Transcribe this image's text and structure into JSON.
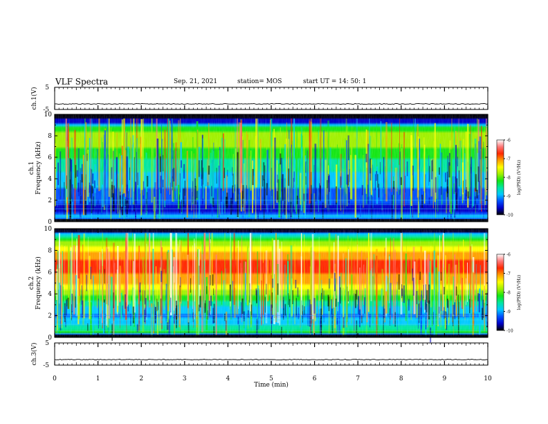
{
  "header": {
    "title": "VLF Spectra",
    "date": "Sep. 21, 2021",
    "station": "station= MOS",
    "start": "start  UT =   14: 50: 1"
  },
  "chart_data": [
    {
      "type": "line",
      "name": "ch.1(V)",
      "ylabel": "ch.1(V)",
      "ylim": [
        -5,
        5
      ],
      "yticks": [
        "5",
        "-5"
      ],
      "xlim": [
        0,
        10
      ],
      "value_approx": -2.5
    },
    {
      "type": "heatmap",
      "ylabel": "ch.1\nFrequency (kHz)",
      "ylabel_lines": [
        "ch.1",
        "Frequency (kHz)"
      ],
      "ylim": [
        0,
        10
      ],
      "yticks": [
        "0",
        "2",
        "4",
        "6",
        "8",
        "10"
      ],
      "xlim": [
        0,
        10
      ],
      "colorbar": {
        "label": "log(PSD) (V²/Hz)",
        "range": [
          -10,
          -6
        ],
        "ticks": [
          "-10",
          "-9",
          "-8",
          "-7",
          "-6"
        ]
      },
      "profile_freq_khz": [
        0,
        0.5,
        1,
        2,
        3,
        4,
        5,
        6,
        7,
        8,
        8.8,
        9.3,
        10
      ],
      "profile_log_psd": [
        -10,
        -8.8,
        -9.6,
        -9.4,
        -9.1,
        -8.9,
        -8.6,
        -8.3,
        -8.0,
        -7.8,
        -8.3,
        -9.6,
        -10
      ]
    },
    {
      "type": "heatmap",
      "ylabel": "ch.2\nFrequency (kHz)",
      "ylabel_lines": [
        "ch.2",
        "Frequency (kHz)"
      ],
      "ylim": [
        0,
        10
      ],
      "yticks": [
        "0",
        "2",
        "4",
        "6",
        "8",
        "10"
      ],
      "xlim": [
        0,
        10
      ],
      "colorbar": {
        "label": "log(PSD) (V²/Hz)",
        "range": [
          -10,
          -6
        ],
        "ticks": [
          "-10",
          "-9",
          "-8",
          "-7",
          "-6"
        ]
      },
      "profile_freq_khz": [
        0,
        0.5,
        1,
        2,
        3,
        4,
        5,
        6,
        7,
        8,
        9,
        9.6,
        10
      ],
      "profile_log_psd": [
        -10,
        -8.2,
        -8.6,
        -9.2,
        -8.6,
        -8.0,
        -7.2,
        -6.9,
        -6.9,
        -7.3,
        -8.2,
        -9.2,
        -10
      ]
    },
    {
      "type": "line",
      "name": "ch.3(V)",
      "ylabel": "ch.3(V)",
      "ylim": [
        -5,
        5
      ],
      "yticks": [
        "5",
        "-5"
      ],
      "xlim": [
        0,
        10
      ],
      "value_approx": -2.5
    }
  ],
  "xaxis": {
    "label": "Time  (min)",
    "range": [
      0,
      10
    ],
    "ticks": [
      "0",
      "1",
      "2",
      "3",
      "4",
      "5",
      "6",
      "7",
      "8",
      "9",
      "10"
    ]
  },
  "colors": {
    "scale": [
      "#000000",
      "#0000c8",
      "#0050ff",
      "#00c8ff",
      "#00e6a0",
      "#14e614",
      "#a0f000",
      "#ffff00",
      "#ffa000",
      "#ff2800",
      "#ff7878",
      "#ffffff"
    ]
  }
}
